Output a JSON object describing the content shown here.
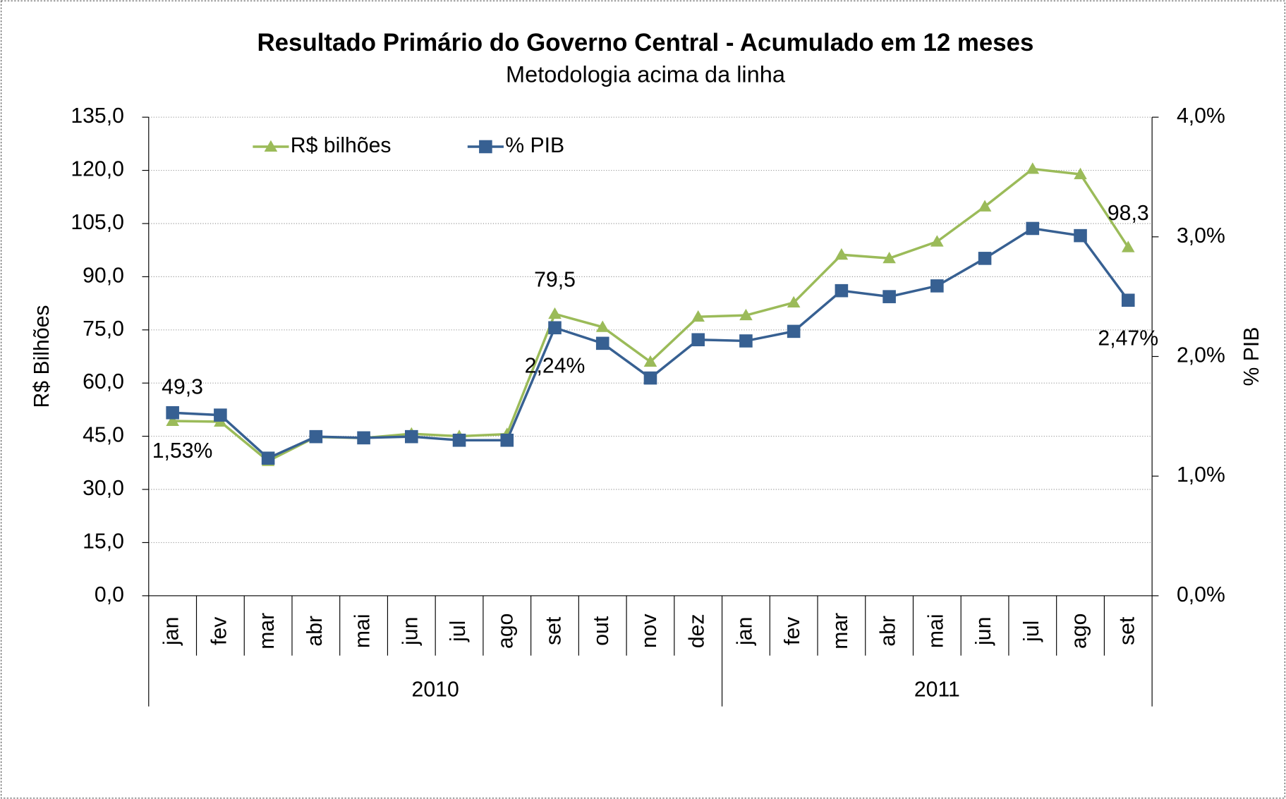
{
  "chart_data": {
    "type": "line",
    "title": "Resultado Primário do Governo Central - Acumulado em 12 meses",
    "subtitle": "Metodologia acima da linha",
    "y_label": "R$ Bilhões",
    "y2_label": "% PIB",
    "category_groups": [
      {
        "label": "2010",
        "categories": [
          "jan",
          "fev",
          "mar",
          "abr",
          "mai",
          "jun",
          "jul",
          "ago",
          "set",
          "out",
          "nov",
          "dez"
        ]
      },
      {
        "label": "2011",
        "categories": [
          "jan",
          "fev",
          "mar",
          "abr",
          "mai",
          "jun",
          "jul",
          "ago",
          "set"
        ]
      }
    ],
    "series": [
      {
        "name": "R$ bilhões",
        "color": "#9bbb59",
        "marker": "triangle",
        "values": [
          49.3,
          49.1,
          38.0,
          44.8,
          44.5,
          45.7,
          45.0,
          45.6,
          79.5,
          75.8,
          66.0,
          78.7,
          79.1,
          82.7,
          96.2,
          95.2,
          99.9,
          109.8,
          120.4,
          118.9,
          98.3
        ],
        "value_labels": [
          "49,3",
          null,
          null,
          null,
          null,
          null,
          null,
          null,
          "79,5",
          null,
          null,
          null,
          null,
          null,
          null,
          null,
          null,
          null,
          null,
          null,
          "98,3"
        ]
      },
      {
        "name": "% PIB",
        "color": "#376092",
        "marker": "square",
        "axis": "y2",
        "values": [
          1.53,
          1.51,
          1.15,
          1.33,
          1.32,
          1.33,
          1.3,
          1.3,
          2.24,
          2.11,
          1.82,
          2.14,
          2.13,
          2.21,
          2.55,
          2.5,
          2.59,
          2.82,
          3.07,
          3.01,
          2.47
        ],
        "value_labels": [
          "1,53%",
          null,
          null,
          null,
          null,
          null,
          null,
          null,
          "2,24%",
          null,
          null,
          null,
          null,
          null,
          null,
          null,
          null,
          null,
          null,
          null,
          "2,47%"
        ]
      }
    ],
    "ylim": [
      0,
      135
    ],
    "yticks": [
      {
        "value": 0,
        "label": "0,0"
      },
      {
        "value": 15,
        "label": "15,0"
      },
      {
        "value": 30,
        "label": "30,0"
      },
      {
        "value": 45,
        "label": "45,0"
      },
      {
        "value": 60,
        "label": "60,0"
      },
      {
        "value": 75,
        "label": "75,0"
      },
      {
        "value": 90,
        "label": "90,0"
      },
      {
        "value": 105,
        "label": "105,0"
      },
      {
        "value": 120,
        "label": "120,0"
      },
      {
        "value": 135,
        "label": "135,0"
      }
    ],
    "y2lim": [
      0,
      4
    ],
    "y2ticks": [
      {
        "value": 0,
        "label": "0,0%"
      },
      {
        "value": 1,
        "label": "1,0%"
      },
      {
        "value": 2,
        "label": "2,0%"
      },
      {
        "value": 3,
        "label": "3,0%"
      },
      {
        "value": 4,
        "label": "4,0%"
      }
    ],
    "grid": true,
    "legend": "top-left"
  }
}
